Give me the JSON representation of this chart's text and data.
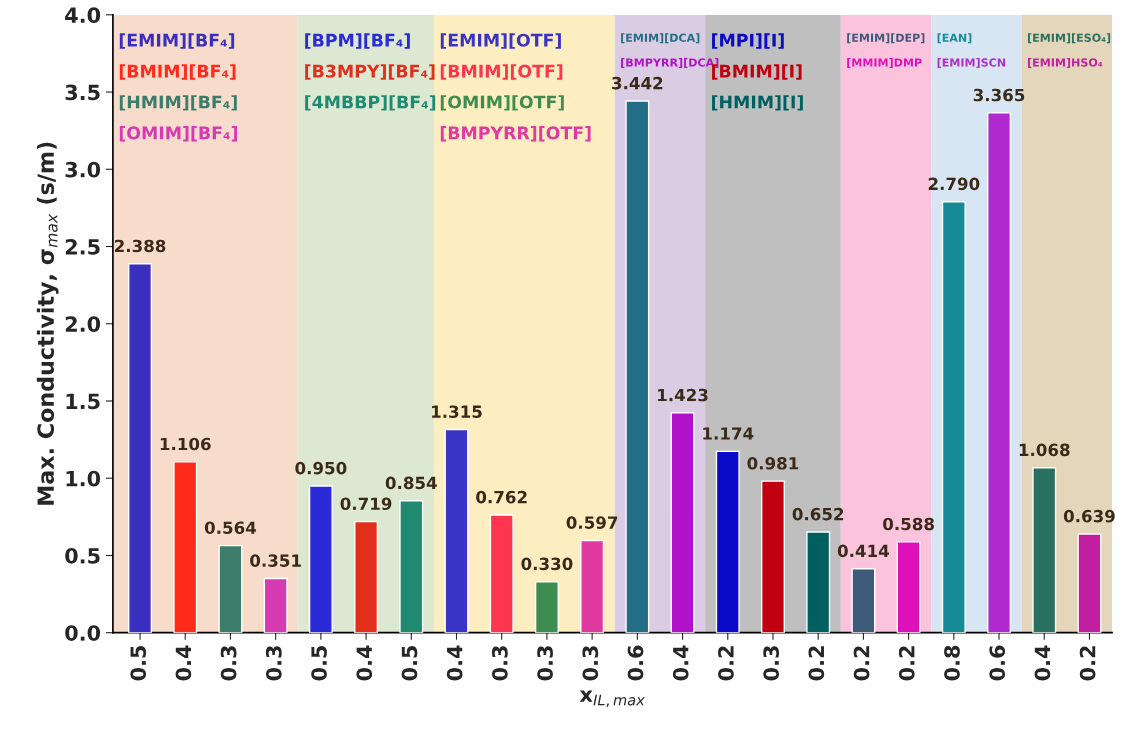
{
  "chart_data": {
    "type": "bar",
    "xlabel": "x$_{IL,max}$",
    "ylabel": "Max. Conductivity, σ$_{max}$ (s/m)",
    "categories": [
      "0.5",
      "0.4",
      "0.3",
      "0.3",
      "0.5",
      "0.4",
      "0.5",
      "0.4",
      "0.3",
      "0.3",
      "0.3",
      "0.6",
      "0.4",
      "0.2",
      "0.3",
      "0.2",
      "0.2",
      "0.2",
      "0.8",
      "0.6",
      "0.4",
      "0.2"
    ],
    "values": [
      2.388,
      1.106,
      0.564,
      0.351,
      0.95,
      0.719,
      0.854,
      1.315,
      0.762,
      0.33,
      0.597,
      3.442,
      1.423,
      1.174,
      0.981,
      0.652,
      0.414,
      0.588,
      2.79,
      3.365,
      1.068,
      0.639
    ],
    "value_labels": [
      "2.388",
      "1.106",
      "0.564",
      "0.351",
      "0.950",
      "0.719",
      "0.854",
      "1.315",
      "0.762",
      "0.330",
      "0.597",
      "3.442",
      "1.423",
      "1.174",
      "0.981",
      "0.652",
      "0.414",
      "0.588",
      "2.790",
      "3.365",
      "1.068",
      "0.639"
    ],
    "colors": [
      "#3b2fc0",
      "#ff2a1a",
      "#3c7c6a",
      "#d63ab0",
      "#2a2ad8",
      "#e0301c",
      "#1f8a70",
      "#3b33c4",
      "#ff3550",
      "#3f8c50",
      "#e03aa0",
      "#236e86",
      "#b012c8",
      "#0a0ac8",
      "#c00010",
      "#005f5f",
      "#3d5a78",
      "#e010b8",
      "#178a98",
      "#b02ad0",
      "#2a7060",
      "#c020a0"
    ],
    "ylim": [
      0,
      4
    ],
    "yticks": [
      {
        "value": 0,
        "label": "0.0"
      },
      {
        "value": 0.5,
        "label": "0.5"
      },
      {
        "value": 1,
        "label": "1.0"
      },
      {
        "value": 1.5,
        "label": "1.5"
      },
      {
        "value": 2,
        "label": "2.0"
      },
      {
        "value": 2.5,
        "label": "2.5"
      },
      {
        "value": 3,
        "label": "3.0"
      },
      {
        "value": 3.5,
        "label": "3.5"
      },
      {
        "value": 4,
        "label": "4.0"
      }
    ],
    "annotations": [
      "[EMIM][BF₄]\n[BMIM][BF₄]\n[HMIM][BF₄]\n[OMIM][BF₄]",
      "[BPM][BF₄]\n[B3MPY][BF₄]\n[4MBBP][BF₄]",
      "[EMIM][OTF]\n[BMIM][OTF]\n[OMIM][OTF]\n[BMPYRR][OTF]",
      "[EMIM][DCA]\n[BMPYRR][DCA]",
      "[MPI][I]\n[BMIM][I]\n[HMIM][I]",
      "[EMIM][DEP]\n[MMIM]DMP",
      "[EAN]\n[EMIM]SCN",
      "[EMIM][ESO₄]\n[EMIM]HSO₄"
    ]
  }
}
